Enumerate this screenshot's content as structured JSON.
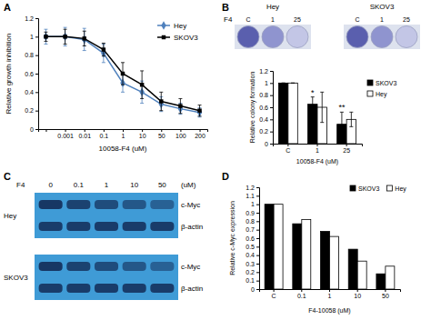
{
  "chart_data": [
    {
      "type": "line",
      "title": "A",
      "x_label": "10058-F4 (uM)",
      "y_label": "Relative growth inhibition",
      "categories": [
        null,
        "0.001",
        "0.01",
        "0.1",
        "1",
        "10",
        "50",
        "100",
        "200"
      ],
      "ylim": [
        0,
        1.2
      ],
      "yticks": [
        0,
        0.2,
        0.4,
        0.6,
        0.8,
        1,
        1.2
      ],
      "legend": "top-right",
      "series": [
        {
          "name": "Hey",
          "color": "#4f81bd",
          "marker": "diamond",
          "values": [
            1,
            1,
            0.97,
            0.82,
            0.5,
            0.4,
            0.27,
            0.22,
            0.18
          ],
          "errors": [
            0.08,
            0.1,
            0.12,
            0.1,
            0.1,
            0.12,
            0.08,
            0.06,
            0.05
          ]
        },
        {
          "name": "SKOV3",
          "color": "#000000",
          "marker": "square",
          "values": [
            1,
            1,
            0.98,
            0.86,
            0.6,
            0.48,
            0.3,
            0.25,
            0.2
          ],
          "errors": [
            0.05,
            0.08,
            0.08,
            0.07,
            0.12,
            0.15,
            0.1,
            0.08,
            0.06
          ]
        }
      ]
    },
    {
      "type": "bar",
      "title": "B",
      "x_label": "10058-F4 (uM)",
      "y_label": "Relative colony formation",
      "categories": [
        "C",
        "1",
        "25"
      ],
      "ylim": [
        0,
        1.2
      ],
      "yticks": [
        0,
        0.2,
        0.4,
        0.6,
        0.8,
        1,
        1.2
      ],
      "legend": "right",
      "series": [
        {
          "name": "SKOV3",
          "color": "#000000",
          "values": [
            1,
            0.65,
            0.32
          ],
          "errors": [
            0,
            0.12,
            0.2
          ]
        },
        {
          "name": "Hey",
          "color": "#ffffff",
          "values": [
            1,
            0.6,
            0.4
          ],
          "errors": [
            0,
            0.25,
            0.12
          ]
        }
      ],
      "annotations": [
        {
          "text": "*",
          "category": "1"
        },
        {
          "text": "**",
          "category": "25"
        }
      ],
      "images": {
        "label": "F4",
        "groups": [
          "Hey",
          "SKOV3"
        ],
        "lanes": [
          "C",
          "1",
          "25"
        ]
      }
    },
    {
      "type": "blot",
      "title": "C",
      "label": "F4",
      "unit": "(uM)",
      "categories": [
        "0",
        "0.1",
        "1",
        "10",
        "50"
      ],
      "groups": [
        "Hey",
        "SKOV3"
      ],
      "rows": [
        "c-Myc",
        "β-actin"
      ]
    },
    {
      "type": "bar",
      "title": "D",
      "x_label": "F4-10058 (uM)",
      "y_label": "Relative c-Myc expression",
      "categories": [
        "C",
        "0.1",
        "1",
        "10",
        "50"
      ],
      "ylim": [
        0,
        1.2
      ],
      "yticks": [
        0,
        0.1,
        0.2,
        0.3,
        0.4,
        0.5,
        0.6,
        0.7,
        0.8,
        0.9,
        1,
        1.1,
        1.2
      ],
      "legend": "top-right",
      "series": [
        {
          "name": "SKOV3",
          "color": "#000000",
          "values": [
            1,
            0.77,
            0.68,
            0.47,
            0.18
          ]
        },
        {
          "name": "Hey",
          "color": "#ffffff",
          "values": [
            1,
            0.82,
            0.62,
            0.33,
            0.27
          ]
        }
      ]
    }
  ]
}
